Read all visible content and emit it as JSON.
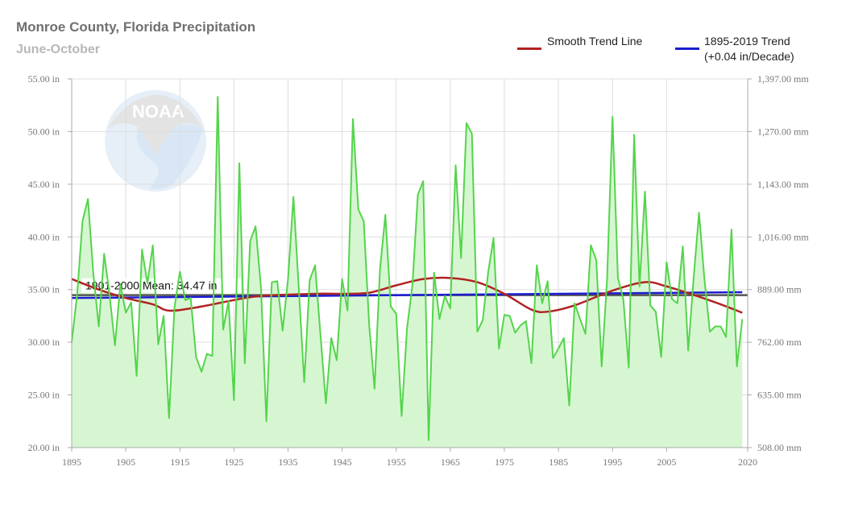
{
  "chart_data": {
    "type": "line",
    "title": "Monroe County, Florida Precipitation",
    "subtitle": "June-October",
    "xlabel": "",
    "ylabel": "",
    "xlim": [
      1895,
      2020
    ],
    "ylim": [
      20,
      55
    ],
    "y2lim": [
      508,
      1397
    ],
    "grid": true,
    "legend_position": "top-right",
    "x_ticks": [
      "1895",
      "1905",
      "1915",
      "1925",
      "1935",
      "1945",
      "1955",
      "1965",
      "1975",
      "1985",
      "1995",
      "2005",
      "2020"
    ],
    "y_ticks": [
      "20.00 in",
      "25.00 in",
      "30.00 in",
      "35.00 in",
      "40.00 in",
      "45.00 in",
      "50.00 in",
      "55.00 in"
    ],
    "y2_ticks": [
      "508.00 mm",
      "635.00 mm",
      "762.00 mm",
      "889.00 mm",
      "1,016.00 mm",
      "1,143.00 mm",
      "1,270.00 mm",
      "1,397.00 mm"
    ],
    "x": [
      1895,
      1896,
      1897,
      1898,
      1899,
      1900,
      1901,
      1902,
      1903,
      1904,
      1905,
      1906,
      1907,
      1908,
      1909,
      1910,
      1911,
      1912,
      1913,
      1914,
      1915,
      1916,
      1917,
      1918,
      1919,
      1920,
      1921,
      1922,
      1923,
      1924,
      1925,
      1926,
      1927,
      1928,
      1929,
      1930,
      1931,
      1932,
      1933,
      1934,
      1935,
      1936,
      1937,
      1938,
      1939,
      1940,
      1941,
      1942,
      1943,
      1944,
      1945,
      1946,
      1947,
      1948,
      1949,
      1950,
      1951,
      1952,
      1953,
      1954,
      1955,
      1956,
      1957,
      1958,
      1959,
      1960,
      1961,
      1962,
      1963,
      1964,
      1965,
      1966,
      1967,
      1968,
      1969,
      1970,
      1971,
      1972,
      1973,
      1974,
      1975,
      1976,
      1977,
      1978,
      1979,
      1980,
      1981,
      1982,
      1983,
      1984,
      1985,
      1986,
      1987,
      1988,
      1989,
      1990,
      1991,
      1992,
      1993,
      1994,
      1995,
      1996,
      1997,
      1998,
      1999,
      2000,
      2001,
      2002,
      2003,
      2004,
      2005,
      2006,
      2007,
      2008,
      2009,
      2010,
      2011,
      2012,
      2013,
      2014,
      2015,
      2016,
      2017,
      2018,
      2019
    ],
    "series": [
      {
        "name": "",
        "color": "#55d44c",
        "fill": "#d6f6d2",
        "values": [
          30.0,
          34.5,
          41.5,
          43.6,
          36.5,
          31.5,
          38.4,
          34.5,
          29.7,
          35.5,
          32.8,
          33.8,
          26.8,
          38.8,
          35.6,
          39.2,
          29.8,
          32.5,
          22.8,
          33.3,
          36.7,
          34.0,
          34.2,
          28.6,
          27.2,
          28.9,
          28.7,
          53.3,
          31.2,
          33.9,
          24.5,
          47.0,
          28.0,
          39.6,
          41.0,
          35.2,
          22.5,
          35.7,
          35.8,
          31.1,
          36.0,
          43.8,
          35.0,
          26.2,
          35.9,
          37.3,
          30.7,
          24.2,
          30.4,
          28.3,
          36.0,
          33.0,
          51.2,
          42.6,
          41.5,
          31.7,
          25.6,
          36.9,
          42.1,
          33.4,
          32.7,
          23.0,
          31.3,
          35.4,
          44.0,
          45.3,
          20.7,
          36.6,
          32.2,
          34.4,
          33.2,
          46.8,
          38.0,
          50.8,
          49.8,
          31.0,
          32.1,
          36.6,
          39.9,
          29.4,
          32.6,
          32.5,
          30.9,
          31.6,
          32.0,
          28.0,
          37.3,
          33.7,
          35.8,
          28.5,
          29.4,
          30.4,
          24.0,
          33.7,
          32.2,
          30.8,
          39.2,
          37.8,
          27.7,
          36.0,
          51.4,
          36.1,
          34.1,
          27.6,
          49.7,
          35.3,
          44.3,
          33.5,
          32.9,
          28.6,
          37.6,
          34.1,
          33.7,
          39.1,
          29.2,
          36.1,
          42.3,
          36.0,
          31.0,
          31.5,
          31.5,
          30.5,
          40.7,
          27.7,
          32.2
        ]
      },
      {
        "name": "Smooth Trend Line",
        "color": "#b22222",
        "points": [
          [
            1895,
            36.0
          ],
          [
            1900,
            35.0
          ],
          [
            1905,
            34.2
          ],
          [
            1910,
            33.6
          ],
          [
            1913,
            33.0
          ],
          [
            1918,
            33.3
          ],
          [
            1925,
            34.0
          ],
          [
            1930,
            34.4
          ],
          [
            1940,
            34.6
          ],
          [
            1945,
            34.6
          ],
          [
            1950,
            34.7
          ],
          [
            1955,
            35.4
          ],
          [
            1960,
            36.0
          ],
          [
            1965,
            36.1
          ],
          [
            1970,
            35.7
          ],
          [
            1975,
            34.6
          ],
          [
            1980,
            33.1
          ],
          [
            1983,
            32.9
          ],
          [
            1988,
            33.5
          ],
          [
            1995,
            34.9
          ],
          [
            2001,
            35.7
          ],
          [
            2005,
            35.3
          ],
          [
            2010,
            34.5
          ],
          [
            2015,
            33.6
          ],
          [
            2019,
            32.8
          ]
        ]
      },
      {
        "name": "1895-2019 Trend",
        "label_line2": "(+0.04 in/Decade)",
        "color": "#1c1cd4",
        "points": [
          [
            1895,
            34.2
          ],
          [
            2019,
            34.75
          ]
        ]
      }
    ],
    "mean": {
      "label": "1901-2000 Mean: 34.47 in",
      "value": 34.47,
      "color": "#555555"
    }
  }
}
